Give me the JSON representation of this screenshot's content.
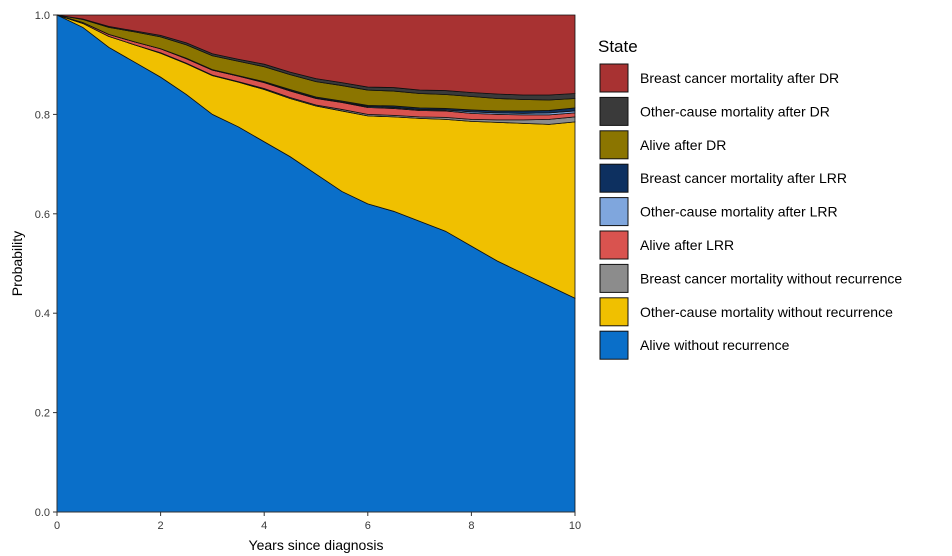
{
  "chart_data": {
    "type": "area",
    "xlabel": "Years since diagnosis",
    "ylabel": "Probability",
    "xlim": [
      0,
      10
    ],
    "ylim": [
      0,
      1
    ],
    "x_ticks": [
      0,
      2,
      4,
      6,
      8,
      10
    ],
    "y_ticks": [
      0.0,
      0.2,
      0.4,
      0.6,
      0.8,
      1.0
    ],
    "x_tick_labels": [
      "0",
      "2",
      "4",
      "6",
      "8",
      "10"
    ],
    "y_tick_labels": [
      "0.0",
      "0.2",
      "0.4",
      "0.6",
      "0.8",
      "1.0"
    ],
    "grid": false,
    "stacked": true,
    "legend_title": "State",
    "legend_position": "right",
    "x": [
      0,
      0.5,
      1,
      1.5,
      2,
      2.5,
      3,
      3.5,
      4,
      4.5,
      5,
      5.5,
      6,
      6.5,
      7,
      7.5,
      8,
      8.5,
      9,
      9.5,
      10
    ],
    "series": [
      {
        "name": "Alive without recurrence",
        "color": "#0a6fc9",
        "values": [
          1.0,
          0.975,
          0.935,
          0.905,
          0.875,
          0.84,
          0.8,
          0.775,
          0.745,
          0.715,
          0.68,
          0.645,
          0.62,
          0.605,
          0.585,
          0.565,
          0.535,
          0.505,
          0.48,
          0.455,
          0.43
        ]
      },
      {
        "name": "Other-cause mortality without recurrence",
        "color": "#f0c000",
        "values": [
          0.0,
          0.008,
          0.022,
          0.035,
          0.048,
          0.062,
          0.078,
          0.09,
          0.105,
          0.117,
          0.137,
          0.162,
          0.177,
          0.19,
          0.207,
          0.225,
          0.251,
          0.279,
          0.302,
          0.325,
          0.355
        ]
      },
      {
        "name": "Breast cancer mortality without recurrence",
        "color": "#8c8c8c",
        "values": [
          0.0,
          0.0,
          0.0,
          0.0,
          0.001,
          0.001,
          0.001,
          0.001,
          0.002,
          0.002,
          0.002,
          0.003,
          0.003,
          0.003,
          0.003,
          0.004,
          0.004,
          0.005,
          0.007,
          0.01,
          0.01
        ]
      },
      {
        "name": "Alive after LRR",
        "color": "#d9534f",
        "values": [
          0.0,
          0.002,
          0.004,
          0.006,
          0.008,
          0.009,
          0.01,
          0.011,
          0.012,
          0.013,
          0.013,
          0.014,
          0.014,
          0.014,
          0.013,
          0.013,
          0.012,
          0.011,
          0.01,
          0.009,
          0.008
        ]
      },
      {
        "name": "Other-cause mortality after LRR",
        "color": "#7fa6dd",
        "values": [
          0.0,
          0.0,
          0.0,
          0.0,
          0.0,
          0.0,
          0.0,
          0.0,
          0.001,
          0.001,
          0.001,
          0.001,
          0.002,
          0.002,
          0.002,
          0.002,
          0.003,
          0.003,
          0.003,
          0.004,
          0.004
        ]
      },
      {
        "name": "Breast cancer mortality after LRR",
        "color": "#0d3060",
        "values": [
          0.0,
          0.0,
          0.0,
          0.0,
          0.0,
          0.001,
          0.001,
          0.001,
          0.001,
          0.002,
          0.002,
          0.002,
          0.002,
          0.003,
          0.003,
          0.003,
          0.004,
          0.004,
          0.005,
          0.005,
          0.006
        ]
      },
      {
        "name": "Alive after DR",
        "color": "#8b7500",
        "values": [
          0.0,
          0.006,
          0.014,
          0.02,
          0.024,
          0.027,
          0.028,
          0.029,
          0.03,
          0.03,
          0.031,
          0.031,
          0.031,
          0.03,
          0.029,
          0.028,
          0.027,
          0.025,
          0.023,
          0.021,
          0.019
        ]
      },
      {
        "name": "Other-cause mortality after DR",
        "color": "#3a3a3a",
        "values": [
          0.0,
          0.001,
          0.002,
          0.002,
          0.003,
          0.004,
          0.004,
          0.004,
          0.005,
          0.005,
          0.006,
          0.006,
          0.006,
          0.007,
          0.007,
          0.008,
          0.008,
          0.009,
          0.009,
          0.01,
          0.01
        ]
      },
      {
        "name": "Breast cancer mortality after DR",
        "color": "#a83232",
        "values": [
          0.0,
          0.008,
          0.023,
          0.032,
          0.041,
          0.056,
          0.078,
          0.089,
          0.099,
          0.115,
          0.128,
          0.136,
          0.145,
          0.146,
          0.151,
          0.152,
          0.156,
          0.159,
          0.161,
          0.161,
          0.158
        ]
      }
    ],
    "legend_order": [
      "Breast cancer mortality after DR",
      "Other-cause mortality after DR",
      "Alive after DR",
      "Breast cancer mortality after LRR",
      "Other-cause mortality after LRR",
      "Alive after LRR",
      "Breast cancer mortality without recurrence",
      "Other-cause mortality without recurrence",
      "Alive without recurrence"
    ]
  }
}
